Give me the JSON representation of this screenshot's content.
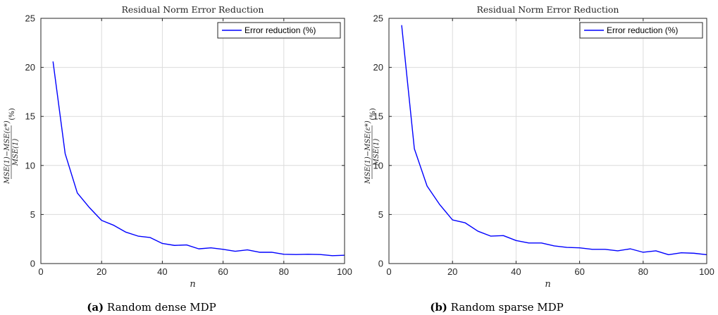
{
  "chart_data": [
    {
      "type": "line",
      "title": "Residual Norm Error Reduction",
      "xlabel": "n",
      "ylabel": "MSE(1)−MSE(ε*) / MSE(1) (%)",
      "ylabel_parts": {
        "numerator": "MSE(1)−MSE(ε*)",
        "denominator": "MSE(1)",
        "unit": "(%)"
      },
      "xlim": [
        0,
        100
      ],
      "ylim": [
        0,
        25
      ],
      "xticks": [
        "0",
        "20",
        "40",
        "60",
        "80",
        "100"
      ],
      "yticks": [
        "0",
        "5",
        "10",
        "15",
        "20",
        "25"
      ],
      "grid": true,
      "legend_position": "top-right",
      "caption_tag": "(a)",
      "caption": "Random dense MDP",
      "series": [
        {
          "name": "Error reduction (%)",
          "color": "#0000ff",
          "x": [
            4,
            8,
            12,
            16,
            20,
            24,
            28,
            32,
            36,
            40,
            44,
            48,
            52,
            56,
            60,
            64,
            68,
            72,
            76,
            80,
            84,
            88,
            92,
            96,
            100
          ],
          "y": [
            20.6,
            11.2,
            7.2,
            5.7,
            4.4,
            3.9,
            3.2,
            2.8,
            2.65,
            2.05,
            1.85,
            1.9,
            1.5,
            1.6,
            1.45,
            1.25,
            1.4,
            1.15,
            1.15,
            0.95,
            0.92,
            0.95,
            0.92,
            0.8,
            0.85
          ]
        }
      ]
    },
    {
      "type": "line",
      "title": "Residual Norm Error Reduction",
      "xlabel": "n",
      "ylabel": "MSE(1)−MSE(ε*) / MSE(1) (%)",
      "ylabel_parts": {
        "numerator": "MSE(1)−MSE(ε*)",
        "denominator": "MSE(1)",
        "unit": "(%)"
      },
      "xlim": [
        0,
        100
      ],
      "ylim": [
        0,
        25
      ],
      "xticks": [
        "0",
        "20",
        "40",
        "60",
        "80",
        "100"
      ],
      "yticks": [
        "0",
        "5",
        "10",
        "15",
        "20",
        "25"
      ],
      "grid": true,
      "legend_position": "top-right",
      "caption_tag": "(b)",
      "caption": "Random sparse MDP",
      "series": [
        {
          "name": "Error reduction (%)",
          "color": "#0000ff",
          "x": [
            4,
            8,
            12,
            16,
            20,
            24,
            28,
            32,
            36,
            40,
            44,
            48,
            52,
            56,
            60,
            64,
            68,
            72,
            76,
            80,
            84,
            88,
            92,
            96,
            100
          ],
          "y": [
            24.3,
            11.7,
            7.9,
            6.0,
            4.45,
            4.15,
            3.3,
            2.8,
            2.85,
            2.35,
            2.1,
            2.1,
            1.8,
            1.65,
            1.6,
            1.45,
            1.45,
            1.3,
            1.5,
            1.15,
            1.3,
            0.9,
            1.1,
            1.05,
            0.9
          ]
        }
      ]
    }
  ]
}
